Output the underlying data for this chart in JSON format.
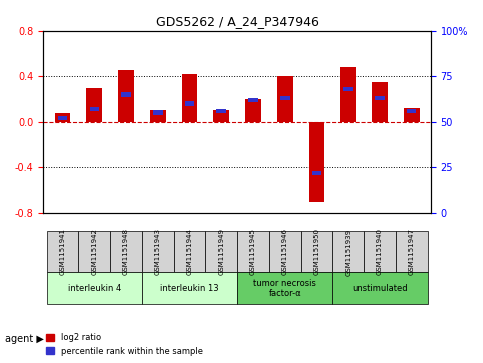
{
  "title": "GDS5262 / A_24_P347946",
  "samples": [
    "GSM1151941",
    "GSM1151942",
    "GSM1151948",
    "GSM1151943",
    "GSM1151944",
    "GSM1151949",
    "GSM1151945",
    "GSM1151946",
    "GSM1151950",
    "GSM1151939",
    "GSM1151940",
    "GSM1151947"
  ],
  "log2_ratio": [
    0.08,
    0.3,
    0.45,
    0.1,
    0.42,
    0.1,
    0.2,
    0.4,
    -0.7,
    0.48,
    0.35,
    0.12
  ],
  "percentile": [
    52,
    57,
    65,
    55,
    60,
    56,
    62,
    63,
    22,
    68,
    63,
    56
  ],
  "agents": [
    {
      "label": "interleukin 4",
      "start": 0,
      "end": 3,
      "color": "#ccffcc"
    },
    {
      "label": "interleukin 13",
      "start": 3,
      "end": 6,
      "color": "#ccffcc"
    },
    {
      "label": "tumor necrosis\nfactor-α",
      "start": 6,
      "end": 9,
      "color": "#66cc66"
    },
    {
      "label": "unstimulated",
      "start": 9,
      "end": 12,
      "color": "#66cc66"
    }
  ],
  "ylim": [
    -0.8,
    0.8
  ],
  "yticks_left": [
    -0.8,
    -0.4,
    0.0,
    0.4,
    0.8
  ],
  "yticks_right": [
    0,
    25,
    50,
    75,
    100
  ],
  "bar_color": "#cc0000",
  "blue_color": "#3333cc",
  "bar_width": 0.5,
  "legend_red": "log2 ratio",
  "legend_blue": "percentile rank within the sample",
  "background_color": "#ffffff",
  "plot_bg_color": "#ffffff",
  "grid_color": "#000000"
}
